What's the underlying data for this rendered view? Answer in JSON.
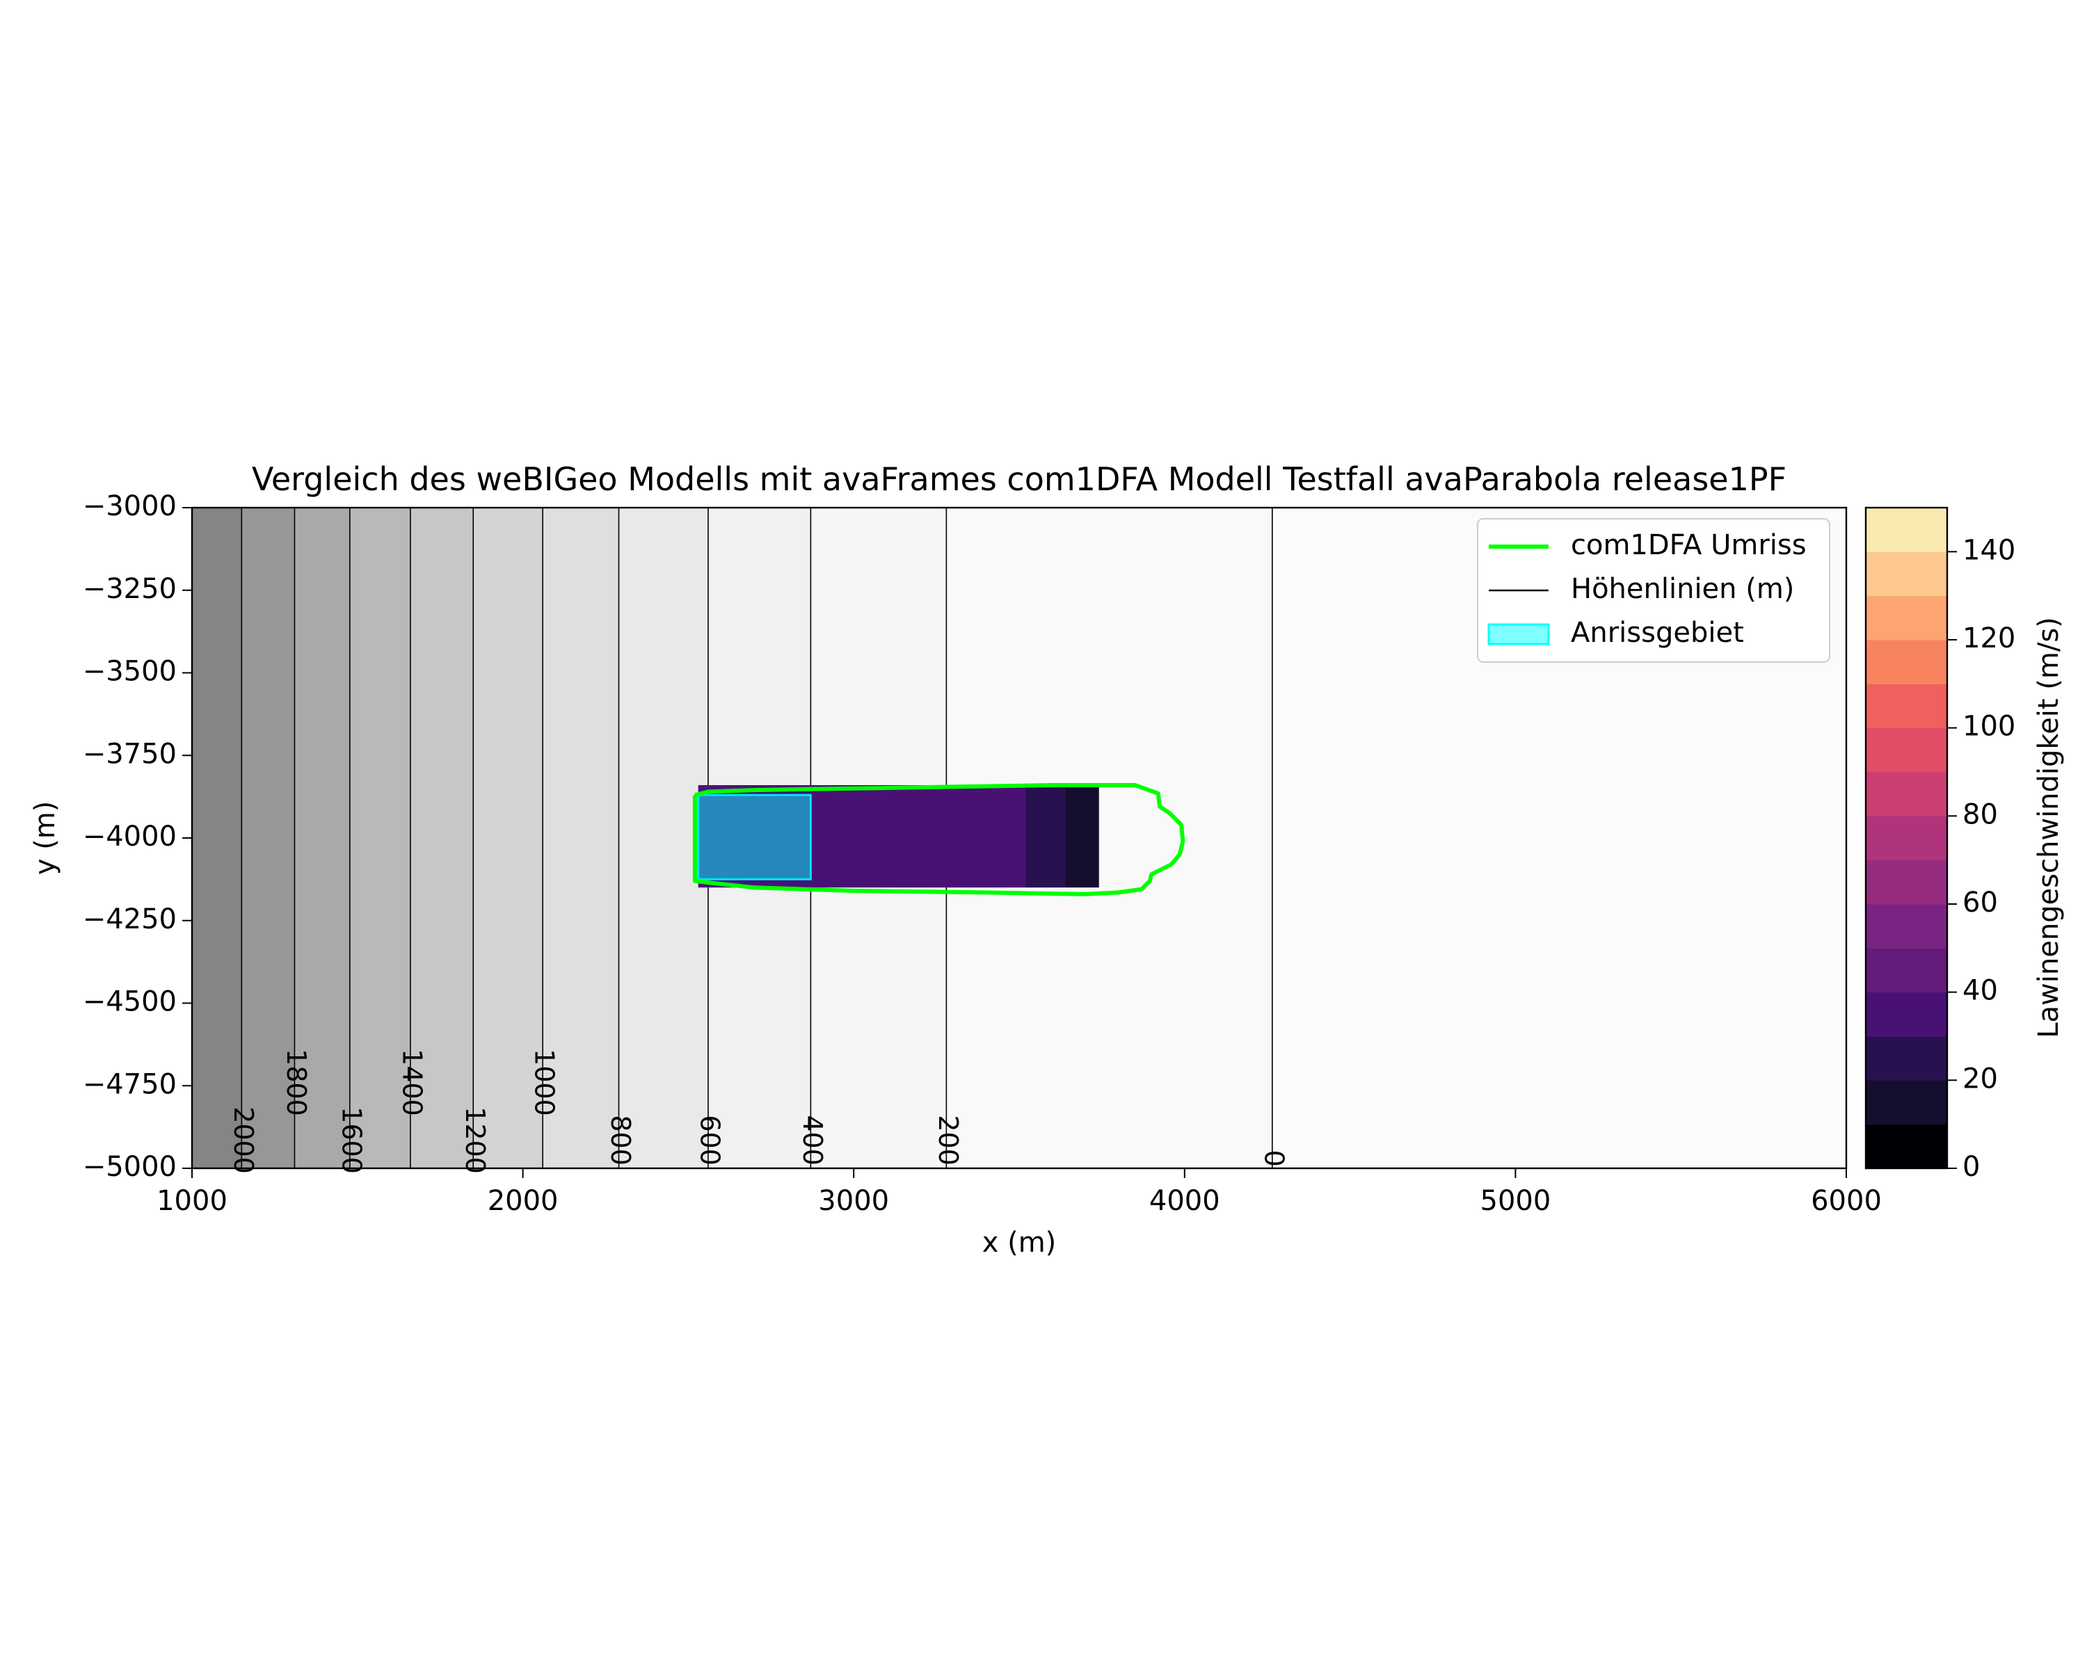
{
  "chart_data": {
    "type": "heatmap",
    "title": "Vergleich des weBIGeo Modells mit avaFrames com1DFA Modell Testfall avaParabola release1PF",
    "xlabel": "x (m)",
    "ylabel": "y (m)",
    "xlim": [
      1000,
      6000
    ],
    "ylim": [
      -5000,
      -3000
    ],
    "x_ticks": [
      "1000",
      "2000",
      "3000",
      "4000",
      "5000",
      "6000"
    ],
    "y_ticks": [
      "−3000",
      "−3250",
      "−3500",
      "−3750",
      "−4000",
      "−4250",
      "−4500",
      "−4750",
      "−5000"
    ],
    "grid": false,
    "legend_position": "top-right",
    "elevation_bands": [
      {
        "x_from": 1000,
        "x_to": 1150,
        "color": "#858585"
      },
      {
        "x_from": 1150,
        "x_to": 1310,
        "color": "#979797"
      },
      {
        "x_from": 1310,
        "x_to": 1477,
        "color": "#a9a9a9"
      },
      {
        "x_from": 1477,
        "x_to": 1660,
        "color": "#b9b9b9"
      },
      {
        "x_from": 1660,
        "x_to": 1850,
        "color": "#c7c7c7"
      },
      {
        "x_from": 1850,
        "x_to": 2060,
        "color": "#d4d4d4"
      },
      {
        "x_from": 2060,
        "x_to": 2290,
        "color": "#dfdfdf"
      },
      {
        "x_from": 2290,
        "x_to": 2560,
        "color": "#e9e9e9"
      },
      {
        "x_from": 2560,
        "x_to": 2870,
        "color": "#f1f1f1"
      },
      {
        "x_from": 2870,
        "x_to": 3280,
        "color": "#f6f6f6"
      },
      {
        "x_from": 3280,
        "x_to": 4265,
        "color": "#f9f9f9"
      },
      {
        "x_from": 4265,
        "x_to": 6000,
        "color": "#fbfbfb"
      }
    ],
    "contours": [
      {
        "label": "2000",
        "x": 1150,
        "label_y": -4915
      },
      {
        "label": "1800",
        "x": 1310,
        "label_y": -4740
      },
      {
        "label": "1600",
        "x": 1477,
        "label_y": -4915
      },
      {
        "label": "1400",
        "x": 1660,
        "label_y": -4740
      },
      {
        "label": "1200",
        "x": 1850,
        "label_y": -4915
      },
      {
        "label": "1000",
        "x": 2060,
        "label_y": -4740
      },
      {
        "label": "800",
        "x": 2290,
        "label_y": -4915
      },
      {
        "label": "600",
        "x": 2560,
        "label_y": -4915
      },
      {
        "label": "400",
        "x": 2870,
        "label_y": -4915
      },
      {
        "label": "200",
        "x": 3280,
        "label_y": -4915
      },
      {
        "label": "0",
        "x": 4265,
        "label_y": -4970
      }
    ],
    "velocity_regions": [
      {
        "x_from": 2530,
        "x_to": 2660,
        "value": 45,
        "color": "#4e1377"
      },
      {
        "x_from": 2660,
        "x_to": 3520,
        "value": 40,
        "color": "#4a1175"
      },
      {
        "x_from": 3520,
        "x_to": 3640,
        "value": 25,
        "color": "#27124f"
      },
      {
        "x_from": 3640,
        "x_to": 3740,
        "value": 12,
        "color": "#150e2f"
      }
    ],
    "velocity_y_range": [
      -4150,
      -3840
    ],
    "com1DFA_outline": [
      [
        2520,
        -3870
      ],
      [
        2560,
        -3860
      ],
      [
        2700,
        -3855
      ],
      [
        3000,
        -3850
      ],
      [
        3300,
        -3845
      ],
      [
        3600,
        -3840
      ],
      [
        3850,
        -3840
      ],
      [
        3920,
        -3865
      ],
      [
        3925,
        -3905
      ],
      [
        3955,
        -3925
      ],
      [
        3990,
        -3960
      ],
      [
        3995,
        -4010
      ],
      [
        3985,
        -4050
      ],
      [
        3960,
        -4080
      ],
      [
        3920,
        -4100
      ],
      [
        3900,
        -4110
      ],
      [
        3895,
        -4130
      ],
      [
        3885,
        -4140
      ],
      [
        3870,
        -4155
      ],
      [
        3800,
        -4165
      ],
      [
        3700,
        -4170
      ],
      [
        3400,
        -4165
      ],
      [
        3000,
        -4160
      ],
      [
        2700,
        -4150
      ],
      [
        2560,
        -4135
      ],
      [
        2520,
        -4130
      ],
      [
        2520,
        -3870
      ]
    ],
    "release_area": {
      "x_from": 2530,
      "x_to": 2870,
      "y_from": -4125,
      "y_to": -3870
    },
    "legend": [
      {
        "label": "com1DFA Umriss",
        "kind": "line",
        "color": "#00ff00"
      },
      {
        "label": "Höhenlinien (m)",
        "kind": "line",
        "color": "#000000"
      },
      {
        "label": "Anrissgebiet",
        "kind": "patch",
        "color": "#00ffff"
      }
    ],
    "colorbar": {
      "label": "Lawinengeschwindigkeit (m/s)",
      "min": 0,
      "max": 150,
      "step": 10,
      "ticks": [
        "0",
        "20",
        "40",
        "60",
        "80",
        "100",
        "120",
        "140"
      ],
      "colors": [
        "#000004",
        "#150e2f",
        "#27124f",
        "#4a1175",
        "#631b7c",
        "#7b2382",
        "#952c80",
        "#b0347b",
        "#cb3e72",
        "#e14d66",
        "#f0605d",
        "#f8845f",
        "#fca572",
        "#fdc98f",
        "#fbeaaf"
      ]
    }
  }
}
